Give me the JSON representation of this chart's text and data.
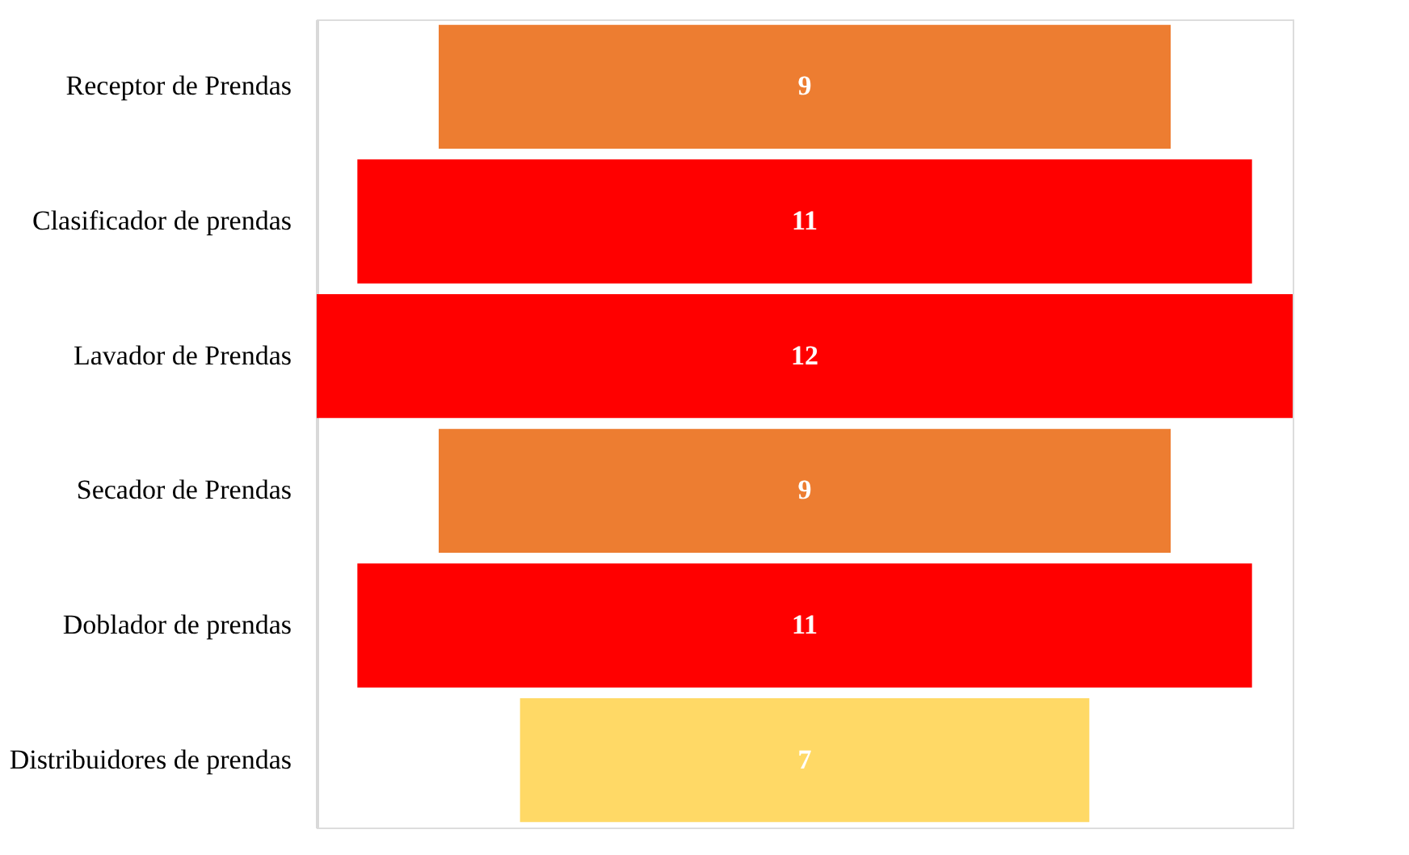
{
  "chart_data": {
    "type": "other",
    "categories": [
      "Receptor de Prendas",
      "Clasificador de prendas",
      "Lavador de Prendas",
      "Secador de Prendas",
      "Doblador de prendas",
      "Distribuidores de prendas"
    ],
    "values": [
      9,
      11,
      12,
      9,
      11,
      7
    ],
    "colors": [
      "#ed7d31",
      "#ff0000",
      "#ff0000",
      "#ed7d31",
      "#ff0000",
      "#ffd966"
    ],
    "data_labels": true
  }
}
